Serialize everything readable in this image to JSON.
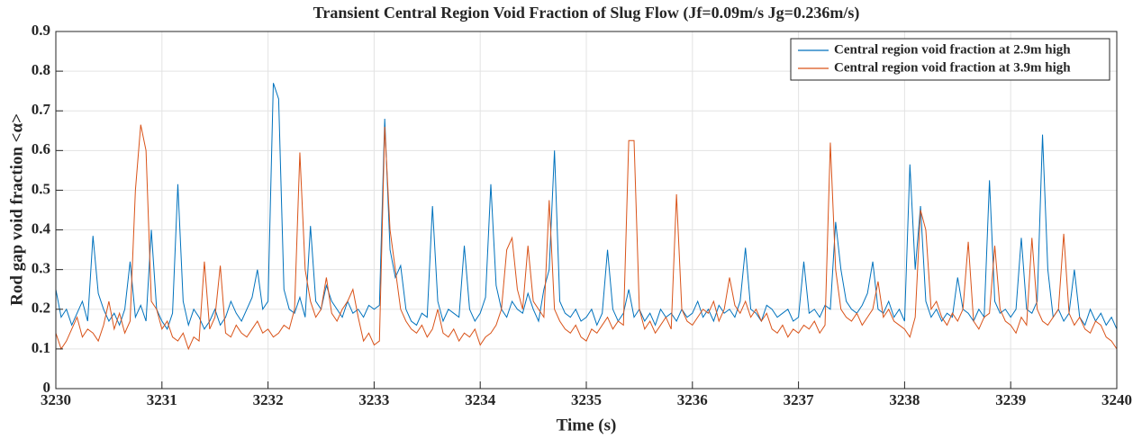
{
  "chart_data": {
    "type": "line",
    "title": "Transient Central Region Void Fraction of Slug Flow (Jf=0.09m/s Jg=0.236m/s)",
    "x_label": "Time (s)",
    "y_label": "Rod gap void fraction <α>",
    "xlim": [
      3230,
      3240
    ],
    "ylim": [
      0,
      0.9
    ],
    "xticks": [
      3230,
      3231,
      3232,
      3233,
      3234,
      3235,
      3236,
      3237,
      3238,
      3239,
      3240
    ],
    "yticks": [
      0,
      0.1,
      0.2,
      0.3,
      0.4,
      0.5,
      0.6,
      0.7,
      0.8,
      0.9
    ],
    "grid": true,
    "legend": "top-right",
    "x": [
      3230,
      3230.05,
      3230.1,
      3230.15,
      3230.2,
      3230.25,
      3230.3,
      3230.35,
      3230.4,
      3230.45,
      3230.5,
      3230.55,
      3230.6,
      3230.65,
      3230.7,
      3230.75,
      3230.8,
      3230.85,
      3230.9,
      3230.95,
      3231,
      3231.05,
      3231.1,
      3231.15,
      3231.2,
      3231.25,
      3231.3,
      3231.35,
      3231.4,
      3231.45,
      3231.5,
      3231.55,
      3231.6,
      3231.65,
      3231.7,
      3231.75,
      3231.8,
      3231.85,
      3231.9,
      3231.95,
      3232,
      3232.05,
      3232.1,
      3232.15,
      3232.2,
      3232.25,
      3232.3,
      3232.35,
      3232.4,
      3232.45,
      3232.5,
      3232.55,
      3232.6,
      3232.65,
      3232.7,
      3232.75,
      3232.8,
      3232.85,
      3232.9,
      3232.95,
      3233,
      3233.05,
      3233.1,
      3233.15,
      3233.2,
      3233.25,
      3233.3,
      3233.35,
      3233.4,
      3233.45,
      3233.5,
      3233.55,
      3233.6,
      3233.65,
      3233.7,
      3233.75,
      3233.8,
      3233.85,
      3233.9,
      3233.95,
      3234,
      3234.05,
      3234.1,
      3234.15,
      3234.2,
      3234.25,
      3234.3,
      3234.35,
      3234.4,
      3234.45,
      3234.5,
      3234.55,
      3234.6,
      3234.65,
      3234.7,
      3234.75,
      3234.8,
      3234.85,
      3234.9,
      3234.95,
      3235,
      3235.05,
      3235.1,
      3235.15,
      3235.2,
      3235.25,
      3235.3,
      3235.35,
      3235.4,
      3235.45,
      3235.5,
      3235.55,
      3235.6,
      3235.65,
      3235.7,
      3235.75,
      3235.8,
      3235.85,
      3235.9,
      3235.95,
      3236,
      3236.05,
      3236.1,
      3236.15,
      3236.2,
      3236.25,
      3236.3,
      3236.35,
      3236.4,
      3236.45,
      3236.5,
      3236.55,
      3236.6,
      3236.65,
      3236.7,
      3236.75,
      3236.8,
      3236.85,
      3236.9,
      3236.95,
      3237,
      3237.05,
      3237.1,
      3237.15,
      3237.2,
      3237.25,
      3237.3,
      3237.35,
      3237.4,
      3237.45,
      3237.5,
      3237.55,
      3237.6,
      3237.65,
      3237.7,
      3237.75,
      3237.8,
      3237.85,
      3237.9,
      3237.95,
      3238,
      3238.05,
      3238.1,
      3238.15,
      3238.2,
      3238.25,
      3238.3,
      3238.35,
      3238.4,
      3238.45,
      3238.5,
      3238.55,
      3238.6,
      3238.65,
      3238.7,
      3238.75,
      3238.8,
      3238.85,
      3238.9,
      3238.95,
      3239,
      3239.05,
      3239.1,
      3239.15,
      3239.2,
      3239.25,
      3239.3,
      3239.35,
      3239.4,
      3239.45,
      3239.5,
      3239.55,
      3239.6,
      3239.65,
      3239.7,
      3239.75,
      3239.8,
      3239.85,
      3239.9,
      3239.95,
      3240
    ],
    "series": [
      {
        "name": "Central region void fraction at 2.9m high",
        "color": "#0072bd",
        "values": [
          0.25,
          0.18,
          0.2,
          0.16,
          0.19,
          0.22,
          0.17,
          0.385,
          0.24,
          0.2,
          0.17,
          0.19,
          0.16,
          0.2,
          0.32,
          0.18,
          0.21,
          0.17,
          0.4,
          0.2,
          0.17,
          0.15,
          0.19,
          0.515,
          0.22,
          0.16,
          0.2,
          0.18,
          0.15,
          0.17,
          0.2,
          0.16,
          0.18,
          0.22,
          0.19,
          0.17,
          0.2,
          0.23,
          0.3,
          0.2,
          0.22,
          0.77,
          0.73,
          0.25,
          0.2,
          0.19,
          0.23,
          0.18,
          0.41,
          0.22,
          0.2,
          0.26,
          0.22,
          0.2,
          0.18,
          0.22,
          0.19,
          0.2,
          0.18,
          0.21,
          0.2,
          0.21,
          0.68,
          0.35,
          0.28,
          0.31,
          0.2,
          0.17,
          0.16,
          0.19,
          0.18,
          0.46,
          0.22,
          0.17,
          0.2,
          0.19,
          0.18,
          0.36,
          0.2,
          0.17,
          0.19,
          0.23,
          0.515,
          0.26,
          0.2,
          0.18,
          0.22,
          0.2,
          0.19,
          0.24,
          0.2,
          0.17,
          0.25,
          0.3,
          0.6,
          0.22,
          0.19,
          0.18,
          0.2,
          0.17,
          0.18,
          0.2,
          0.16,
          0.19,
          0.35,
          0.2,
          0.17,
          0.19,
          0.25,
          0.18,
          0.2,
          0.17,
          0.19,
          0.16,
          0.2,
          0.18,
          0.19,
          0.17,
          0.2,
          0.18,
          0.19,
          0.22,
          0.18,
          0.2,
          0.17,
          0.21,
          0.19,
          0.2,
          0.18,
          0.22,
          0.355,
          0.2,
          0.19,
          0.17,
          0.21,
          0.2,
          0.18,
          0.19,
          0.2,
          0.17,
          0.18,
          0.32,
          0.19,
          0.2,
          0.18,
          0.21,
          0.2,
          0.42,
          0.3,
          0.22,
          0.2,
          0.19,
          0.21,
          0.24,
          0.32,
          0.2,
          0.19,
          0.22,
          0.18,
          0.2,
          0.17,
          0.565,
          0.3,
          0.46,
          0.22,
          0.18,
          0.2,
          0.17,
          0.19,
          0.18,
          0.28,
          0.2,
          0.19,
          0.17,
          0.2,
          0.18,
          0.525,
          0.22,
          0.19,
          0.2,
          0.18,
          0.2,
          0.38,
          0.2,
          0.19,
          0.22,
          0.64,
          0.3,
          0.18,
          0.2,
          0.17,
          0.19,
          0.3,
          0.18,
          0.16,
          0.2,
          0.17,
          0.19,
          0.16,
          0.18,
          0.15
        ]
      },
      {
        "name": "Central region void fraction at 3.9m high",
        "color": "#d95319",
        "values": [
          0.14,
          0.1,
          0.12,
          0.15,
          0.18,
          0.13,
          0.15,
          0.14,
          0.12,
          0.16,
          0.22,
          0.15,
          0.19,
          0.14,
          0.17,
          0.5,
          0.665,
          0.6,
          0.22,
          0.2,
          0.15,
          0.17,
          0.13,
          0.12,
          0.14,
          0.1,
          0.13,
          0.12,
          0.32,
          0.15,
          0.18,
          0.31,
          0.14,
          0.13,
          0.16,
          0.14,
          0.13,
          0.15,
          0.17,
          0.14,
          0.15,
          0.13,
          0.14,
          0.16,
          0.15,
          0.2,
          0.595,
          0.3,
          0.22,
          0.18,
          0.2,
          0.28,
          0.19,
          0.17,
          0.2,
          0.22,
          0.25,
          0.18,
          0.12,
          0.14,
          0.11,
          0.12,
          0.66,
          0.4,
          0.3,
          0.2,
          0.17,
          0.15,
          0.14,
          0.16,
          0.13,
          0.15,
          0.2,
          0.14,
          0.13,
          0.15,
          0.12,
          0.14,
          0.13,
          0.15,
          0.11,
          0.13,
          0.14,
          0.16,
          0.2,
          0.35,
          0.38,
          0.25,
          0.2,
          0.36,
          0.22,
          0.2,
          0.18,
          0.475,
          0.2,
          0.17,
          0.15,
          0.14,
          0.16,
          0.13,
          0.12,
          0.15,
          0.14,
          0.16,
          0.18,
          0.15,
          0.17,
          0.16,
          0.625,
          0.625,
          0.2,
          0.15,
          0.17,
          0.14,
          0.16,
          0.18,
          0.15,
          0.49,
          0.2,
          0.17,
          0.16,
          0.18,
          0.2,
          0.19,
          0.22,
          0.17,
          0.2,
          0.28,
          0.21,
          0.19,
          0.22,
          0.18,
          0.2,
          0.17,
          0.19,
          0.15,
          0.14,
          0.16,
          0.13,
          0.15,
          0.14,
          0.16,
          0.15,
          0.17,
          0.14,
          0.16,
          0.62,
          0.3,
          0.2,
          0.18,
          0.17,
          0.19,
          0.16,
          0.18,
          0.2,
          0.27,
          0.18,
          0.2,
          0.17,
          0.16,
          0.15,
          0.13,
          0.18,
          0.45,
          0.4,
          0.2,
          0.22,
          0.18,
          0.16,
          0.19,
          0.17,
          0.2,
          0.37,
          0.17,
          0.15,
          0.18,
          0.19,
          0.36,
          0.2,
          0.17,
          0.16,
          0.14,
          0.18,
          0.16,
          0.38,
          0.2,
          0.17,
          0.16,
          0.18,
          0.2,
          0.39,
          0.19,
          0.16,
          0.18,
          0.15,
          0.14,
          0.17,
          0.16,
          0.13,
          0.12,
          0.1
        ]
      }
    ]
  }
}
